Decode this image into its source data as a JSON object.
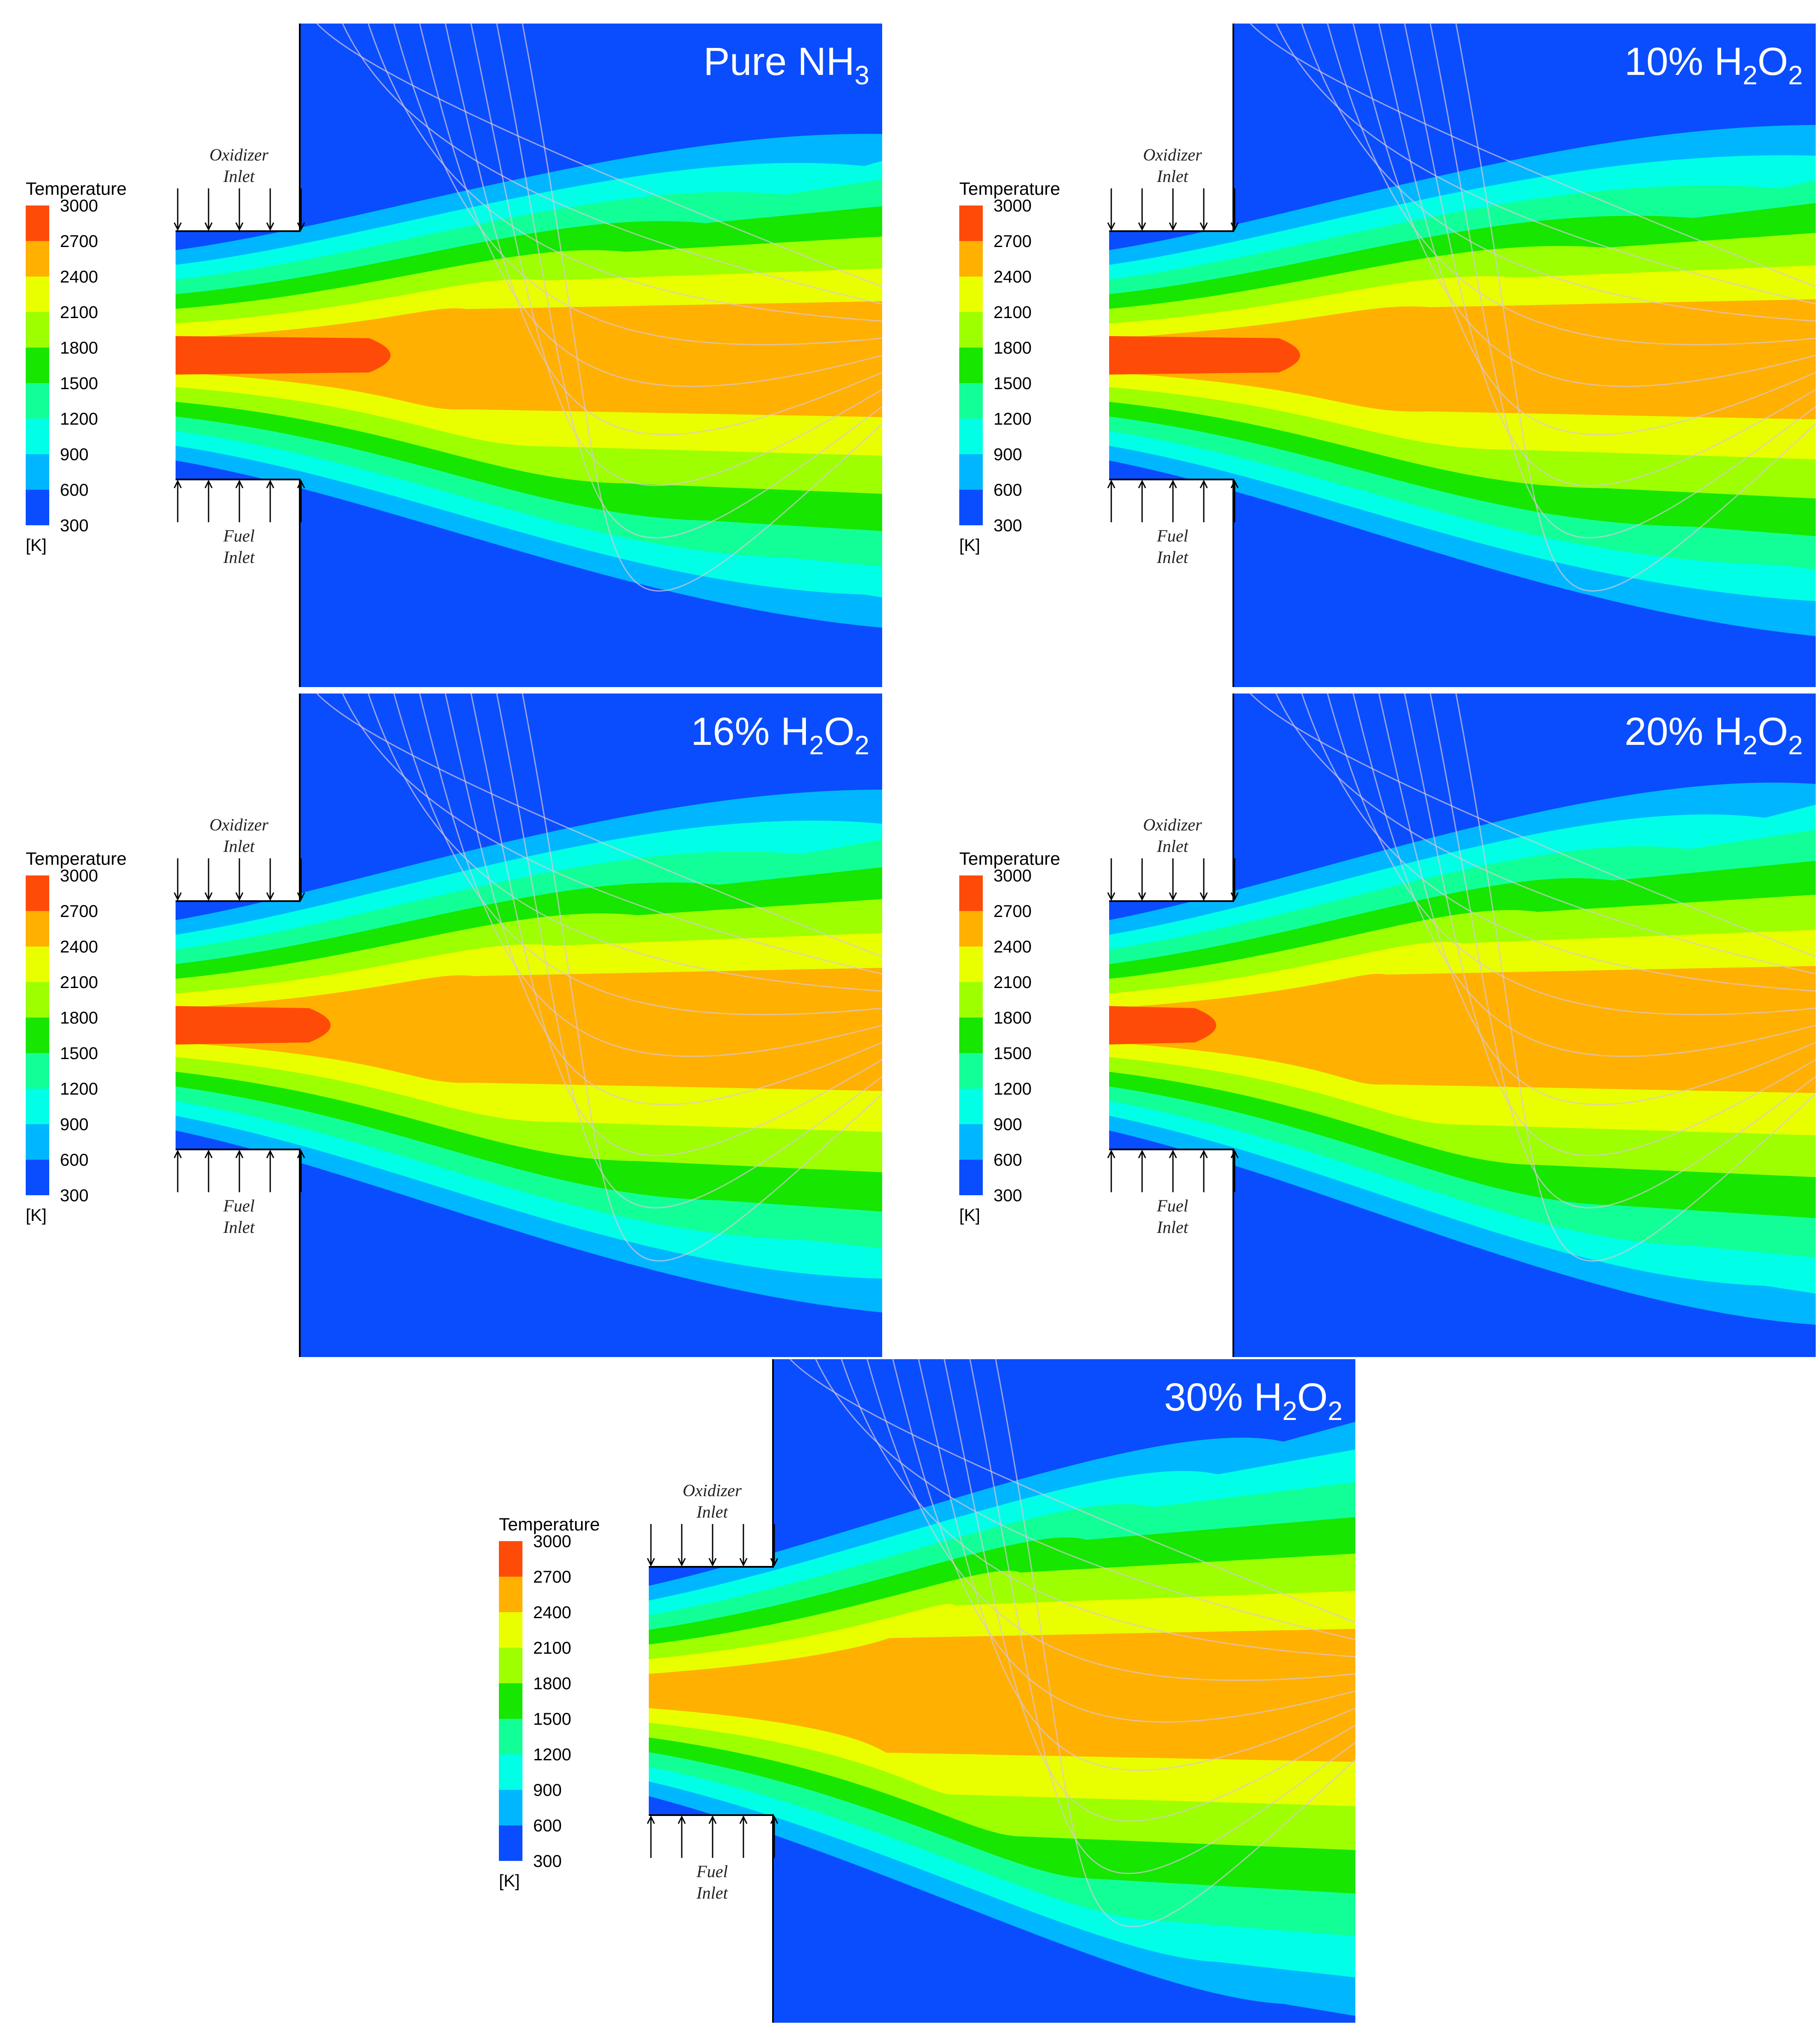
{
  "legend": {
    "title": "Temperature",
    "unit": "[K]",
    "ticks": [
      "3000",
      "2700",
      "2400",
      "2100",
      "1800",
      "1500",
      "1200",
      "900",
      "600",
      "300"
    ],
    "band_colors": [
      "#ff4b08",
      "#ffb000",
      "#e9ff00",
      "#9dff00",
      "#16e600",
      "#12ff98",
      "#00ffe6",
      "#00b7ff",
      "#0a4dff"
    ]
  },
  "labels": {
    "oxidizer_line1": "Oxidizer",
    "oxidizer_line2": "Inlet",
    "fuel_line1": "Fuel",
    "fuel_line2": "Inlet"
  },
  "panels": [
    {
      "id": "pure",
      "title_base": "Pure NH",
      "title_sub": "3",
      "title_tail": "",
      "flame_scale": 1.0,
      "core_length": 0.28,
      "spread": 0.0
    },
    {
      "id": "h2o2-10",
      "title_base": "10% H",
      "title_sub": "2",
      "title_tail": "O",
      "title_sub2": "2",
      "flame_scale": 1.05,
      "core_length": 0.24,
      "spread": 0.05
    },
    {
      "id": "h2o2-16",
      "title_base": "16% H",
      "title_sub": "2",
      "title_tail": "O",
      "title_sub2": "2",
      "flame_scale": 0.95,
      "core_length": 0.18,
      "spread": 0.08
    },
    {
      "id": "h2o2-20",
      "title_base": "20% H",
      "title_sub": "2",
      "title_tail": "O",
      "title_sub2": "2",
      "flame_scale": 0.85,
      "core_length": 0.1,
      "spread": 0.12
    },
    {
      "id": "h2o2-30",
      "title_base": "30% H",
      "title_sub": "2",
      "title_tail": "O",
      "title_sub2": "2",
      "flame_scale": 0.7,
      "core_length": 0.0,
      "spread": 0.18
    }
  ]
}
